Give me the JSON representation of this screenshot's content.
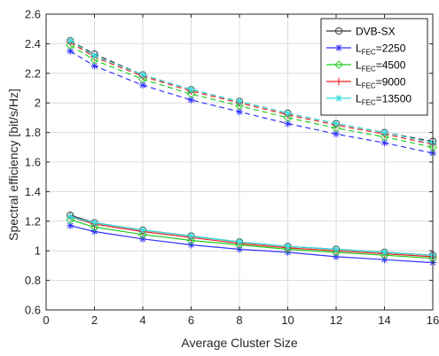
{
  "chart_data": {
    "type": "line",
    "xlabel": "Average Cluster Size",
    "ylabel": "Spectral efficiency [bit/s/Hz]",
    "xlim": [
      0,
      16
    ],
    "ylim": [
      0.6,
      2.6
    ],
    "xticks": [
      "0",
      "2",
      "4",
      "6",
      "8",
      "10",
      "12",
      "14",
      "16"
    ],
    "yticks": [
      "0.6",
      "0.8",
      "1",
      "1.2",
      "1.4",
      "1.6",
      "1.8",
      "2",
      "2.2",
      "2.4",
      "2.6"
    ],
    "grid": true,
    "legend_position": "top-right",
    "x": [
      1,
      2,
      4,
      6,
      8,
      10,
      12,
      14,
      16
    ],
    "series": [
      {
        "name": "DVB-SX",
        "legend_main": "DVB-SX",
        "legend_sub": "",
        "legend_suffix": "",
        "color": "#333333",
        "marker": "circle",
        "dashed_values": [
          2.42,
          2.33,
          2.19,
          2.09,
          2.01,
          1.93,
          1.86,
          1.8,
          1.74
        ],
        "solid_values": [
          1.24,
          1.19,
          1.14,
          1.1,
          1.06,
          1.03,
          1.01,
          0.99,
          0.97
        ]
      },
      {
        "name": "L_FEC=2250",
        "legend_main": "L",
        "legend_sub": "FEC",
        "legend_suffix": "=2250",
        "color": "#3232ff",
        "marker": "star",
        "dashed_values": [
          2.35,
          2.25,
          2.12,
          2.02,
          1.94,
          1.86,
          1.79,
          1.73,
          1.66
        ],
        "solid_values": [
          1.17,
          1.13,
          1.08,
          1.04,
          1.01,
          0.99,
          0.96,
          0.94,
          0.92
        ]
      },
      {
        "name": "L_FEC=4500",
        "legend_main": "L",
        "legend_sub": "FEC",
        "legend_suffix": "=4500",
        "color": "#22cc22",
        "marker": "diamond",
        "dashed_values": [
          2.39,
          2.29,
          2.16,
          2.06,
          1.98,
          1.9,
          1.83,
          1.77,
          1.7
        ],
        "solid_values": [
          1.21,
          1.16,
          1.11,
          1.07,
          1.04,
          1.01,
          0.99,
          0.97,
          0.95
        ]
      },
      {
        "name": "L_FEC=9000",
        "legend_main": "L",
        "legend_sub": "FEC",
        "legend_suffix": "=9000",
        "color": "#ee2222",
        "marker": "plus",
        "dashed_values": [
          2.41,
          2.31,
          2.18,
          2.08,
          2.0,
          1.92,
          1.85,
          1.79,
          1.72
        ],
        "solid_values": [
          1.23,
          1.18,
          1.13,
          1.09,
          1.05,
          1.02,
          1.0,
          0.98,
          0.96
        ]
      },
      {
        "name": "L_FEC=13500",
        "legend_main": "L",
        "legend_sub": "FEC",
        "legend_suffix": "=13500",
        "color": "#33dddd",
        "marker": "star",
        "dashed_values": [
          2.42,
          2.32,
          2.19,
          2.09,
          2.01,
          1.93,
          1.86,
          1.8,
          1.73
        ],
        "solid_values": [
          1.23,
          1.19,
          1.14,
          1.1,
          1.06,
          1.03,
          1.01,
          0.99,
          0.97
        ]
      }
    ]
  }
}
